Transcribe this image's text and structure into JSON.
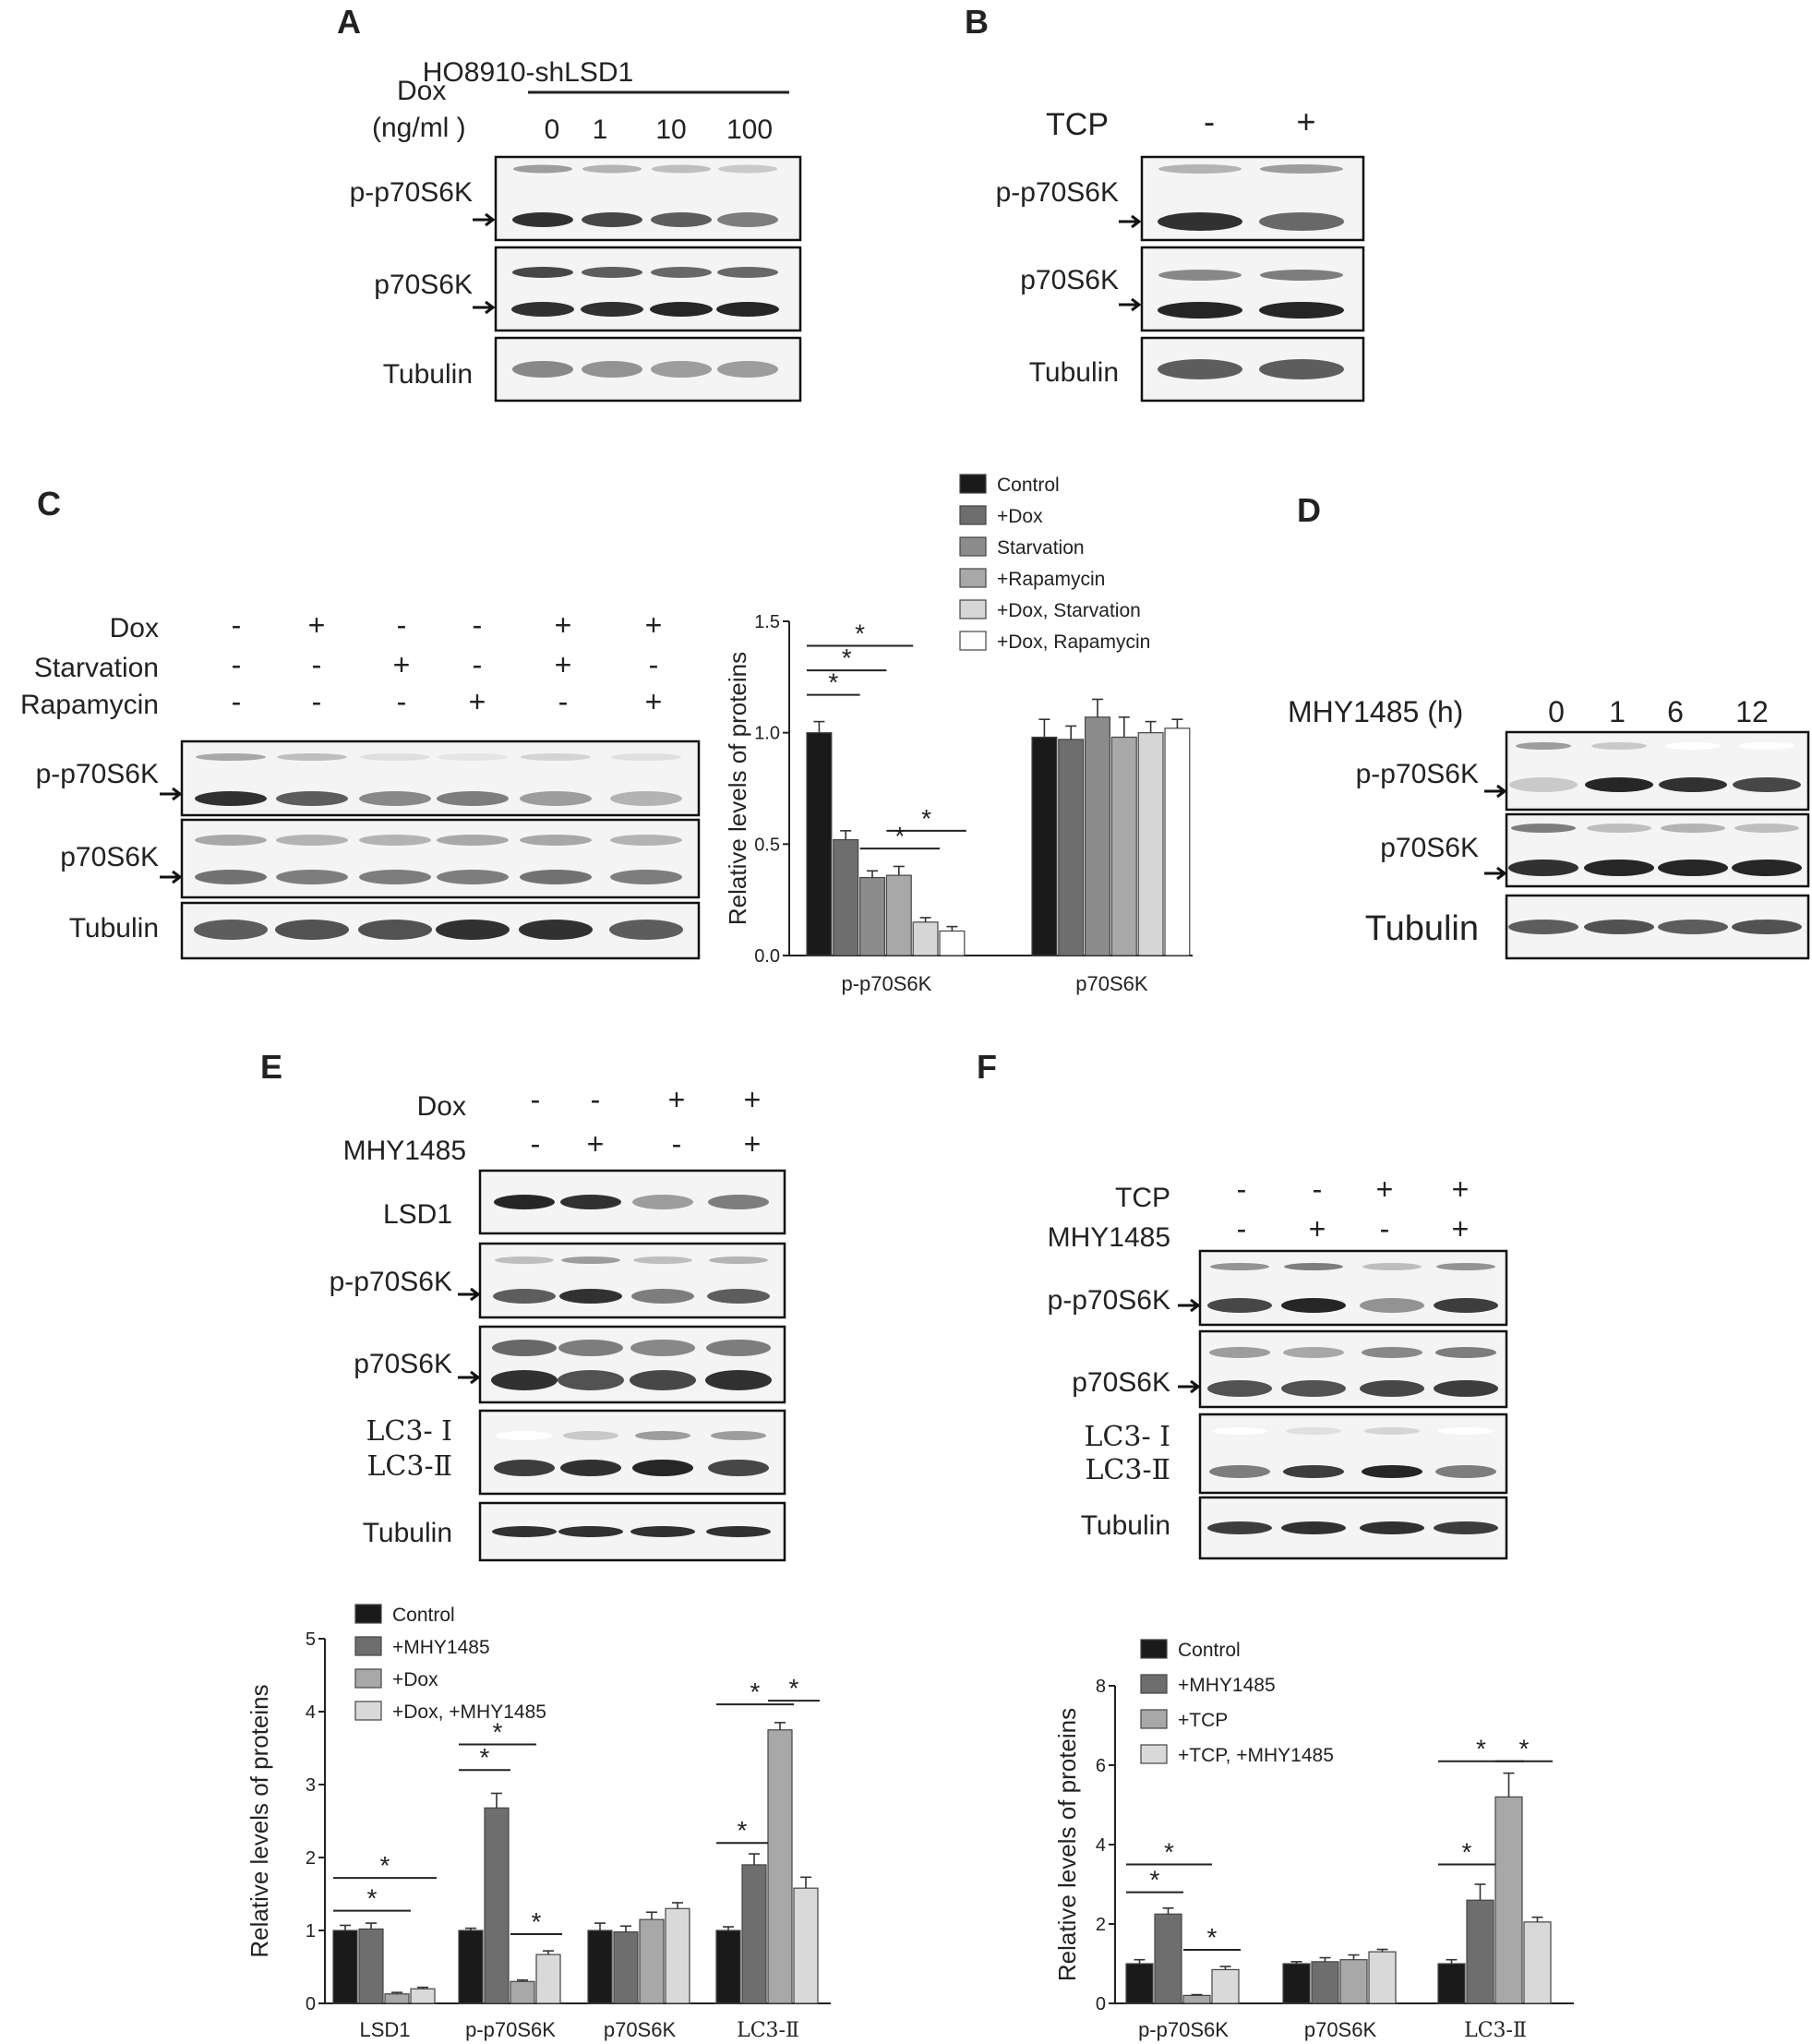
{
  "panels": {
    "A": {
      "letter": "A",
      "header": "HO8910-shLSD1",
      "cond_label_1": "Dox",
      "cond_label_2": "(ng/ml )",
      "lanes": [
        "0",
        "1",
        "10",
        "100"
      ],
      "rows": [
        "p-p70S6K",
        "p70S6K",
        "Tubulin"
      ]
    },
    "B": {
      "letter": "B",
      "cond_label": "TCP",
      "lanes": [
        "-",
        "+"
      ],
      "rows": [
        "p-p70S6K",
        "p70S6K",
        "Tubulin"
      ]
    },
    "C": {
      "letter": "C",
      "conditions": [
        {
          "label": "Dox",
          "signs": [
            "-",
            "+",
            "-",
            "-",
            "+",
            "+"
          ]
        },
        {
          "label": "Starvation",
          "signs": [
            "-",
            "-",
            "+",
            "-",
            "+",
            "-"
          ]
        },
        {
          "label": "Rapamycin",
          "signs": [
            "-",
            "-",
            "-",
            "+",
            "-",
            "+"
          ]
        }
      ],
      "rows": [
        "p-p70S6K",
        "p70S6K",
        "Tubulin"
      ]
    },
    "D": {
      "letter": "D",
      "cond_label": "MHY1485 (h)",
      "lanes": [
        "0",
        "1",
        "6",
        "12"
      ],
      "rows": [
        "p-p70S6K",
        "p70S6K",
        "Tubulin"
      ]
    },
    "E": {
      "letter": "E",
      "conditions": [
        {
          "label": "Dox",
          "signs": [
            "-",
            "-",
            "+",
            "+"
          ]
        },
        {
          "label": "MHY1485",
          "signs": [
            "-",
            "+",
            "-",
            "+"
          ]
        }
      ],
      "rows": [
        "LSD1",
        "p-p70S6K",
        "p70S6K",
        "LC3- Ⅰ",
        "LC3-Ⅱ",
        "Tubulin"
      ]
    },
    "F": {
      "letter": "F",
      "conditions": [
        {
          "label": "TCP",
          "signs": [
            "-",
            "-",
            "+",
            "+"
          ]
        },
        {
          "label": "MHY1485",
          "signs": [
            "-",
            "+",
            "-",
            "+"
          ]
        }
      ],
      "rows": [
        "p-p70S6K",
        "p70S6K",
        "LC3- Ⅰ",
        "LC3-Ⅱ",
        "Tubulin"
      ]
    }
  },
  "chart_data": [
    {
      "id": "C",
      "type": "bar",
      "ylabel": "Relative levels of proteins",
      "ylim": [
        0,
        1.5
      ],
      "yticks": [
        "0.0",
        "0.5",
        "1.0",
        "1.5"
      ],
      "categories": [
        "p-p70S6K",
        "p70S6K"
      ],
      "legend_placement": "top-right",
      "series": [
        {
          "name": "Control",
          "color": "#1a1a1a",
          "values": [
            1.0,
            0.98
          ],
          "errors": [
            0.05,
            0.08
          ]
        },
        {
          "name": "+Dox",
          "color": "#6e6e6e",
          "values": [
            0.52,
            0.97
          ],
          "errors": [
            0.04,
            0.06
          ]
        },
        {
          "name": "Starvation",
          "color": "#8c8c8c",
          "values": [
            0.35,
            1.07
          ],
          "errors": [
            0.03,
            0.08
          ]
        },
        {
          "name": "+Rapamycin",
          "color": "#a8a8a8",
          "values": [
            0.36,
            0.98
          ],
          "errors": [
            0.04,
            0.09
          ]
        },
        {
          "name": "+Dox, Starvation",
          "color": "#d6d6d6",
          "values": [
            0.15,
            1.0
          ],
          "errors": [
            0.02,
            0.05
          ]
        },
        {
          "name": "+Dox, Rapamycin",
          "color": "#ffffff",
          "values": [
            0.11,
            1.02
          ],
          "errors": [
            0.02,
            0.04
          ]
        }
      ],
      "significance": "*"
    },
    {
      "id": "E",
      "type": "bar",
      "ylabel": "Relative levels of proteins",
      "ylim": [
        0,
        5
      ],
      "yticks": [
        "0",
        "1",
        "2",
        "3",
        "4",
        "5"
      ],
      "categories": [
        "LSD1",
        "p-p70S6K",
        "p70S6K",
        "LC3-Ⅱ"
      ],
      "legend_placement": "top-left",
      "series": [
        {
          "name": "Control",
          "color": "#1a1a1a",
          "values": [
            1.0,
            1.0,
            1.0,
            1.0
          ],
          "errors": [
            0.07,
            0.03,
            0.1,
            0.05
          ]
        },
        {
          "name": "+MHY1485",
          "color": "#6e6e6e",
          "values": [
            1.02,
            2.68,
            0.98,
            1.9
          ],
          "errors": [
            0.08,
            0.2,
            0.08,
            0.15
          ]
        },
        {
          "name": "+Dox",
          "color": "#a8a8a8",
          "values": [
            0.13,
            0.3,
            1.15,
            3.75
          ],
          "errors": [
            0.02,
            0.02,
            0.1,
            0.1
          ]
        },
        {
          "name": "+Dox, +MHY1485",
          "color": "#d9d9d9",
          "values": [
            0.2,
            0.67,
            1.3,
            1.58
          ],
          "errors": [
            0.02,
            0.05,
            0.08,
            0.15
          ]
        }
      ],
      "significance": "*"
    },
    {
      "id": "F",
      "type": "bar",
      "ylabel": "Relative levels of proteins",
      "ylim": [
        0,
        8
      ],
      "yticks": [
        "0",
        "2",
        "4",
        "6",
        "8"
      ],
      "categories": [
        "p-p70S6K",
        "p70S6K",
        "LC3-Ⅱ"
      ],
      "legend_placement": "top-left",
      "series": [
        {
          "name": "Control",
          "color": "#1a1a1a",
          "values": [
            1.0,
            1.0,
            1.0
          ],
          "errors": [
            0.1,
            0.05,
            0.1
          ]
        },
        {
          "name": "+MHY1485",
          "color": "#6e6e6e",
          "values": [
            2.25,
            1.05,
            2.6
          ],
          "errors": [
            0.15,
            0.1,
            0.4
          ]
        },
        {
          "name": "+TCP",
          "color": "#a8a8a8",
          "values": [
            0.2,
            1.1,
            5.2
          ],
          "errors": [
            0.02,
            0.12,
            0.6
          ]
        },
        {
          "name": "+TCP, +MHY1485",
          "color": "#d9d9d9",
          "values": [
            0.85,
            1.3,
            2.05
          ],
          "errors": [
            0.08,
            0.06,
            0.12
          ]
        }
      ],
      "significance": "*"
    }
  ]
}
